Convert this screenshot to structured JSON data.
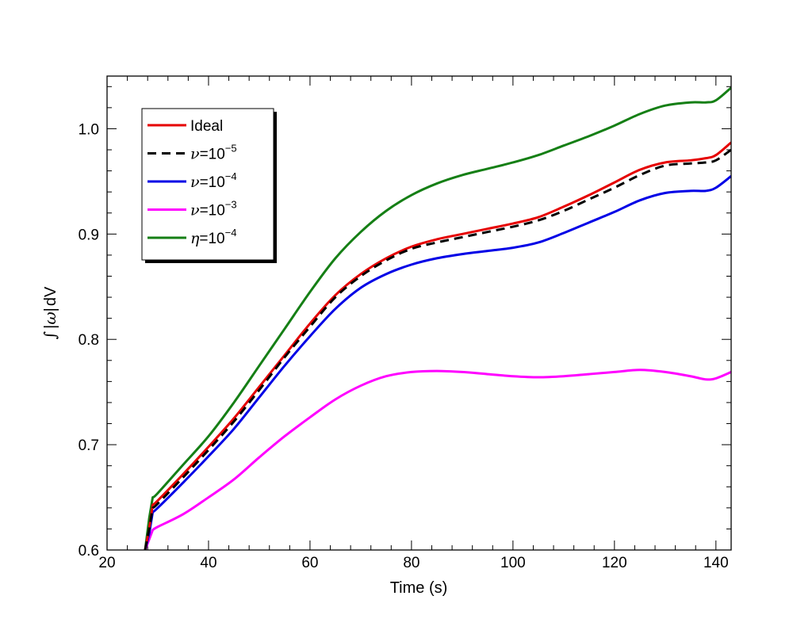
{
  "chart_data": {
    "type": "line",
    "title": "",
    "xlabel": "Time (s)",
    "ylabel_parts": {
      "integral": "∫",
      "bar": "|",
      "omega": "ω",
      "dv": "dV"
    },
    "xlim": [
      20,
      143
    ],
    "ylim": [
      0.6,
      1.05
    ],
    "xticks": [
      20,
      40,
      60,
      80,
      100,
      120,
      140
    ],
    "xtick_labels": [
      "20",
      "40",
      "60",
      "80",
      "100",
      "120",
      "140"
    ],
    "yticks": [
      0.6,
      0.7,
      0.8,
      0.9,
      1.0
    ],
    "ytick_labels": [
      "0.6",
      "0.7",
      "0.8",
      "0.9",
      "1.0"
    ],
    "grid": false,
    "legend_position": "top-left",
    "series": [
      {
        "name": "Ideal",
        "color": "#e60000",
        "dash": "solid",
        "legend": {
          "symbol": "",
          "eq": "",
          "base": "",
          "exp": "",
          "text": "Ideal"
        },
        "x": [
          27.5,
          28.3,
          29.0,
          30,
          35,
          40,
          45,
          50,
          55,
          60,
          65,
          70,
          75,
          80,
          85,
          90,
          95,
          100,
          105,
          110,
          115,
          120,
          125,
          130,
          135,
          138,
          140,
          143
        ],
        "y": [
          0.6,
          0.62,
          0.643,
          0.647,
          0.672,
          0.698,
          0.725,
          0.755,
          0.785,
          0.815,
          0.842,
          0.862,
          0.877,
          0.888,
          0.895,
          0.9,
          0.905,
          0.91,
          0.916,
          0.926,
          0.937,
          0.949,
          0.961,
          0.968,
          0.97,
          0.972,
          0.975,
          0.987
        ]
      },
      {
        "name": "ν=10⁻⁵",
        "color": "#000000",
        "dash": "dashed",
        "legend": {
          "symbol": "ν",
          "eq": "=",
          "base": "10",
          "exp": "−5",
          "text": ""
        },
        "x": [
          27.5,
          28.3,
          29.0,
          30,
          35,
          40,
          45,
          50,
          55,
          60,
          65,
          70,
          75,
          80,
          85,
          90,
          95,
          100,
          105,
          110,
          115,
          120,
          125,
          130,
          135,
          138,
          140,
          143
        ],
        "y": [
          0.6,
          0.62,
          0.64,
          0.644,
          0.669,
          0.695,
          0.722,
          0.752,
          0.783,
          0.812,
          0.84,
          0.86,
          0.875,
          0.886,
          0.892,
          0.897,
          0.902,
          0.907,
          0.913,
          0.922,
          0.933,
          0.944,
          0.956,
          0.965,
          0.967,
          0.968,
          0.97,
          0.98
        ]
      },
      {
        "name": "ν=10⁻⁴",
        "color": "#0000e6",
        "dash": "solid",
        "legend": {
          "symbol": "ν",
          "eq": "=",
          "base": "10",
          "exp": "−4",
          "text": ""
        },
        "x": [
          27.5,
          28.3,
          29.0,
          30,
          35,
          40,
          45,
          50,
          55,
          60,
          65,
          70,
          75,
          80,
          85,
          90,
          95,
          100,
          105,
          110,
          115,
          120,
          125,
          130,
          135,
          138,
          140,
          143
        ],
        "y": [
          0.6,
          0.615,
          0.636,
          0.64,
          0.664,
          0.689,
          0.715,
          0.745,
          0.775,
          0.803,
          0.829,
          0.849,
          0.862,
          0.871,
          0.877,
          0.881,
          0.884,
          0.887,
          0.892,
          0.901,
          0.911,
          0.921,
          0.932,
          0.939,
          0.941,
          0.941,
          0.944,
          0.955
        ]
      },
      {
        "name": "ν=10⁻³",
        "color": "#ff00ff",
        "dash": "solid",
        "legend": {
          "symbol": "ν",
          "eq": "=",
          "base": "10",
          "exp": "−3",
          "text": ""
        },
        "x": [
          27.5,
          28.3,
          29.0,
          30,
          35,
          40,
          45,
          50,
          55,
          60,
          65,
          70,
          75,
          80,
          85,
          90,
          95,
          100,
          105,
          110,
          115,
          120,
          125,
          130,
          135,
          138,
          140,
          143
        ],
        "y": [
          0.6,
          0.61,
          0.619,
          0.622,
          0.634,
          0.65,
          0.667,
          0.688,
          0.708,
          0.726,
          0.743,
          0.756,
          0.765,
          0.769,
          0.77,
          0.769,
          0.767,
          0.765,
          0.764,
          0.765,
          0.767,
          0.769,
          0.771,
          0.769,
          0.765,
          0.762,
          0.763,
          0.769
        ]
      },
      {
        "name": "η=10⁻⁴",
        "color": "#157f15",
        "dash": "solid",
        "legend": {
          "symbol": "η",
          "eq": "=",
          "base": "10",
          "exp": "−4",
          "text": ""
        },
        "x": [
          27.5,
          28.3,
          29.0,
          30,
          35,
          40,
          45,
          50,
          55,
          60,
          65,
          70,
          75,
          80,
          85,
          90,
          95,
          100,
          105,
          110,
          115,
          120,
          125,
          130,
          135,
          138,
          140,
          143
        ],
        "y": [
          0.6,
          0.63,
          0.65,
          0.654,
          0.681,
          0.708,
          0.74,
          0.775,
          0.81,
          0.845,
          0.877,
          0.902,
          0.922,
          0.937,
          0.948,
          0.956,
          0.962,
          0.968,
          0.975,
          0.984,
          0.993,
          1.003,
          1.014,
          1.022,
          1.025,
          1.025,
          1.027,
          1.039
        ]
      }
    ]
  }
}
